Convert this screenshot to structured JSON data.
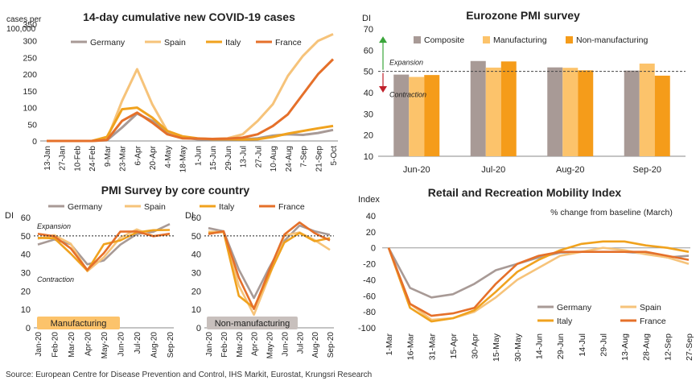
{
  "colors": {
    "germany": "#a89a96",
    "spain": "#f6c37a",
    "italy": "#f0a21e",
    "france": "#e5702a",
    "composite": "#a89a96",
    "manufacturing": "#fcc36b",
    "non_manufacturing": "#f59c1a",
    "up_arrow": "#3aa53a",
    "down_arrow": "#c0202a",
    "grid": "#d9d9d9"
  },
  "source": "Source: European Centre for Disease Prevention and Control, IHS Markit, Eurostat, Krungsri Research",
  "chart_data": [
    {
      "type": "line",
      "title": "14-day cumulative new COVID-19 cases",
      "ylabel_line1": "cases per",
      "ylabel_line2": "100,000",
      "ylim": [
        0,
        350
      ],
      "yticks": [
        0,
        50,
        100,
        150,
        200,
        250,
        300,
        350
      ],
      "x_tick_labels": [
        "13-Jan",
        "27-Jan",
        "10-Feb",
        "24-Feb",
        "9-Mar",
        "23-Mar",
        "6-Apr",
        "20-Apr",
        "4-May",
        "18-May",
        "1-Jun",
        "15-Jun",
        "29-Jun",
        "13-Jul",
        "27-Jul",
        "10-Aug",
        "24-Aug",
        "7-Sep",
        "21-Sep",
        "5-Oct"
      ],
      "series": [
        {
          "name": "Germany",
          "color_key": "germany",
          "values": [
            0,
            0,
            0,
            0,
            2,
            40,
            82,
            60,
            25,
            10,
            5,
            4,
            4,
            5,
            8,
            16,
            20,
            18,
            24,
            33
          ]
        },
        {
          "name": "Spain",
          "color_key": "spain",
          "values": [
            0,
            0,
            0,
            0,
            4,
            120,
            215,
            110,
            30,
            12,
            7,
            6,
            8,
            20,
            60,
            110,
            195,
            255,
            300,
            320
          ]
        },
        {
          "name": "Italy",
          "color_key": "italy",
          "values": [
            0,
            0,
            0,
            0,
            12,
            95,
            100,
            70,
            30,
            14,
            8,
            5,
            5,
            4,
            5,
            12,
            22,
            30,
            38,
            45
          ]
        },
        {
          "name": "France",
          "color_key": "france",
          "values": [
            0,
            0,
            0,
            0,
            3,
            60,
            85,
            55,
            20,
            8,
            7,
            6,
            7,
            10,
            20,
            45,
            80,
            140,
            200,
            245
          ]
        }
      ]
    },
    {
      "type": "bar",
      "title": "Eurozone PMI survey",
      "ylabel": "DI",
      "ylim": [
        10,
        70
      ],
      "yticks": [
        10,
        20,
        30,
        40,
        50,
        60,
        70
      ],
      "categories": [
        "Jun-20",
        "Jul-20",
        "Aug-20",
        "Sep-20"
      ],
      "threshold": 50,
      "expansion_label": "Expansion",
      "contraction_label": "Contraction",
      "series": [
        {
          "name": "Composite",
          "color_key": "composite",
          "values": [
            48.5,
            54.9,
            51.9,
            50.4
          ]
        },
        {
          "name": "Manufacturing",
          "color_key": "manufacturing",
          "values": [
            47.4,
            51.8,
            51.7,
            53.7
          ]
        },
        {
          "name": "Non-manufacturing",
          "color_key": "non_manufacturing",
          "values": [
            48.3,
            54.7,
            50.5,
            48.0
          ]
        }
      ]
    },
    {
      "type": "line",
      "title": "PMI Survey by core country",
      "legend": [
        "Germany",
        "Spain",
        "Italy",
        "France"
      ],
      "panels": [
        {
          "ylabel": "DI",
          "badge": "Manufacturing",
          "ylim": [
            0,
            60
          ],
          "yticks": [
            0,
            10,
            20,
            30,
            40,
            50,
            60
          ],
          "threshold": 50,
          "expansion_label": "Expansion",
          "contraction_label": "Contraction",
          "x_tick_labels": [
            "Jan-20",
            "Feb-20",
            "Mar-20",
            "Apr-20",
            "May-20",
            "Jun-20",
            "Jul-20",
            "Aug-20",
            "Sep-20"
          ],
          "series": [
            {
              "name": "Germany",
              "color_key": "germany",
              "values": [
                45.3,
                48.0,
                45.4,
                34.5,
                36.6,
                45.2,
                51.0,
                52.2,
                56.4
              ]
            },
            {
              "name": "Spain",
              "color_key": "spain",
              "values": [
                48.5,
                50.4,
                45.7,
                30.8,
                38.3,
                49.0,
                53.5,
                49.9,
                50.8
              ]
            },
            {
              "name": "Italy",
              "color_key": "italy",
              "values": [
                48.9,
                48.7,
                40.3,
                31.1,
                45.4,
                47.5,
                51.9,
                53.1,
                53.2
              ]
            },
            {
              "name": "France",
              "color_key": "france",
              "values": [
                51.1,
                49.8,
                43.2,
                31.5,
                40.6,
                52.3,
                52.4,
                49.8,
                51.2
              ]
            }
          ]
        },
        {
          "ylabel": "DI",
          "badge": "Non-manufacturing",
          "ylim": [
            0,
            60
          ],
          "yticks": [
            0,
            10,
            20,
            30,
            40,
            50,
            60
          ],
          "threshold": 50,
          "x_tick_labels": [
            "Jan-20",
            "Feb-20",
            "Mar-20",
            "Apr-20",
            "May-20",
            "Jun-20",
            "Jul-20",
            "Aug-20",
            "Sep-20"
          ],
          "series": [
            {
              "name": "Germany",
              "color_key": "germany",
              "values": [
                54.2,
                52.5,
                31.7,
                16.2,
                32.6,
                47.3,
                55.6,
                52.5,
                50.6
              ]
            },
            {
              "name": "Spain",
              "color_key": "spain",
              "values": [
                52.3,
                52.1,
                23.0,
                7.1,
                27.9,
                50.2,
                51.9,
                47.7,
                42.4
              ]
            },
            {
              "name": "Italy",
              "color_key": "italy",
              "values": [
                51.4,
                52.1,
                17.4,
                10.8,
                28.9,
                46.4,
                51.6,
                47.1,
                48.8
              ]
            },
            {
              "name": "France",
              "color_key": "france",
              "values": [
                51.0,
                52.5,
                27.4,
                10.2,
                31.1,
                50.7,
                57.3,
                51.5,
                47.5
              ]
            }
          ]
        }
      ]
    },
    {
      "type": "line",
      "title": "Retail and Recreation Mobility Index",
      "ylabel": "Index",
      "subtitle": "% change from baseline (March)",
      "ylim": [
        -100,
        40
      ],
      "yticks": [
        -100,
        -80,
        -60,
        -40,
        -20,
        0,
        20,
        40
      ],
      "x_tick_labels": [
        "1-Mar",
        "16-Mar",
        "31-Mar",
        "15-Apr",
        "30-Apr",
        "15-May",
        "30-May",
        "14-Jun",
        "29-Jun",
        "14-Jul",
        "29-Jul",
        "13-Aug",
        "28-Aug",
        "12-Sep",
        "27-Sep"
      ],
      "series": [
        {
          "name": "Germany",
          "color_key": "germany",
          "values": [
            0,
            -50,
            -62,
            -58,
            -45,
            -28,
            -20,
            -12,
            -6,
            -5,
            -5,
            -5,
            -7,
            -12,
            -10
          ]
        },
        {
          "name": "Spain",
          "color_key": "spain",
          "values": [
            0,
            -70,
            -90,
            -88,
            -80,
            -62,
            -40,
            -25,
            -10,
            -5,
            0,
            -3,
            -8,
            -12,
            -20
          ]
        },
        {
          "name": "Italy",
          "color_key": "italy",
          "values": [
            0,
            -75,
            -92,
            -88,
            -78,
            -55,
            -30,
            -15,
            -3,
            5,
            8,
            8,
            3,
            0,
            -5
          ]
        },
        {
          "name": "France",
          "color_key": "france",
          "values": [
            0,
            -70,
            -85,
            -82,
            -75,
            -45,
            -20,
            -10,
            -5,
            -5,
            -5,
            -5,
            -5,
            -10,
            -15
          ]
        }
      ]
    }
  ]
}
